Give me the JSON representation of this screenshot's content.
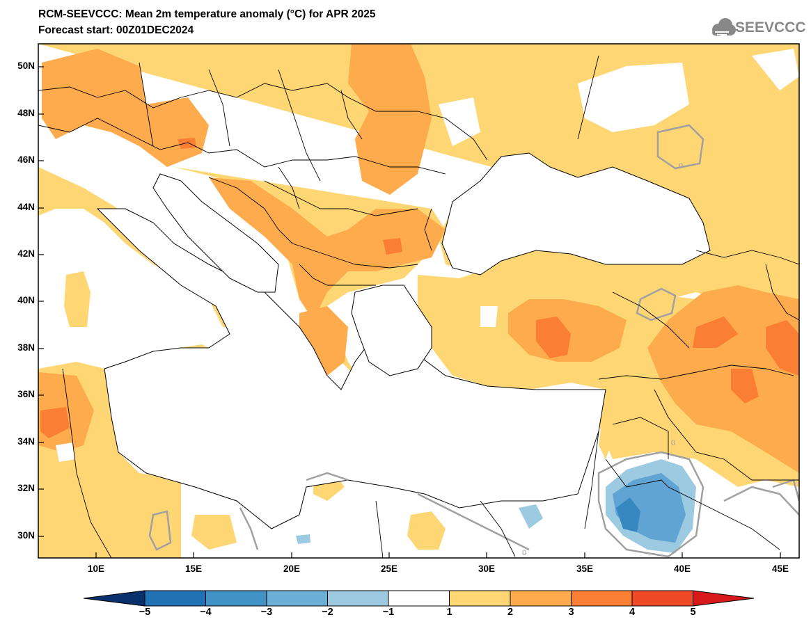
{
  "header": {
    "title": "RCM-SEEVCCC: Mean 2m temperature anomaly (°C) for APR 2025",
    "subtitle": "Forecast start: 00Z01DEC2024",
    "logo_text": "SEEVCCC",
    "logo_icon": "cloud-icon"
  },
  "map": {
    "region": "Eastern Mediterranean / Southeast Europe",
    "lat_ticks": [
      "50N",
      "48N",
      "46N",
      "44N",
      "42N",
      "40N",
      "38N",
      "36N",
      "34N",
      "32N",
      "30N"
    ],
    "lon_ticks": [
      "10E",
      "15E",
      "20E",
      "25E",
      "30E",
      "35E",
      "40E",
      "45E"
    ],
    "contour_label": "0",
    "colors": {
      "sea": "#ffffff",
      "anom_1_2": "#fed674",
      "anom_2_3": "#fdab4c",
      "anom_3_4": "#fa7e33",
      "anom_4_5": "#ef4a27",
      "anom_neg_1_2": "#9ccae1",
      "anom_neg_2_3": "#5fa4d2",
      "anom_neg_3_4": "#3787c0",
      "contour_zero": "#a0a0a0",
      "borders": "#000000"
    }
  },
  "colorbar": {
    "labels": [
      "−5",
      "−4",
      "−3",
      "−2",
      "−1",
      "1",
      "2",
      "3",
      "4",
      "5"
    ],
    "colors": [
      "#08306b",
      "#2171b5",
      "#4292c6",
      "#6baed6",
      "#9ecae1",
      "#ffffff",
      "#fed674",
      "#fdab4c",
      "#fa7e33",
      "#ef4a27",
      "#d7191c"
    ]
  }
}
